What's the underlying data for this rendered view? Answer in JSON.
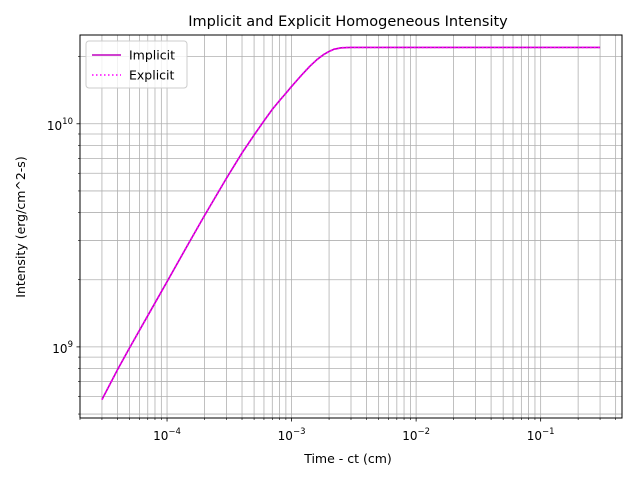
{
  "chart_data": {
    "type": "line",
    "title": "Implicit and Explicit Homogeneous Intensity",
    "xlabel": "Time - ct (cm)",
    "ylabel": "Intensity (erg/cm^2-s)",
    "xscale": "log",
    "yscale": "log",
    "xlim": [
      2e-05,
      0.45
    ],
    "ylim": [
      480000000,
      25000000000
    ],
    "grid": "both major and minor",
    "legend_position": "top-left",
    "x_ticks": [
      {
        "value": 0.0001,
        "mantissa": "10",
        "exponent": "−4"
      },
      {
        "value": 0.001,
        "mantissa": "10",
        "exponent": "−3"
      },
      {
        "value": 0.01,
        "mantissa": "10",
        "exponent": "−2"
      },
      {
        "value": 0.1,
        "mantissa": "10",
        "exponent": "−1"
      }
    ],
    "y_ticks": [
      {
        "value": 1000000000,
        "mantissa": "10",
        "exponent": "9"
      },
      {
        "value": 10000000000,
        "mantissa": "10",
        "exponent": "10"
      }
    ],
    "x": [
      3e-05,
      4e-05,
      5e-05,
      7e-05,
      0.0001,
      0.00015,
      0.0002,
      0.0003,
      0.0004,
      0.0005,
      0.0006,
      0.0007,
      0.0008,
      0.0009,
      0.001,
      0.0012,
      0.0014,
      0.0016,
      0.0018,
      0.002,
      0.0022,
      0.0025,
      0.003,
      0.004,
      0.005,
      0.01,
      0.02,
      0.05,
      0.1,
      0.2,
      0.3
    ],
    "series": [
      {
        "name": "Implicit",
        "color": "#bf00bf",
        "style": "solid",
        "values": [
          580000000,
          790000000,
          990000000,
          1380000000,
          1960000000,
          2930000000,
          3880000000,
          5700000000,
          7400000000,
          8900000000,
          10300000000,
          11600000000,
          12700000000,
          13700000000,
          14700000000,
          16500000000,
          18100000000,
          19400000000,
          20400000000,
          21100000000,
          21600000000,
          21900000000,
          22000000000,
          22000000000,
          22000000000,
          22000000000,
          22000000000,
          22000000000,
          22000000000,
          22000000000,
          22000000000
        ]
      },
      {
        "name": "Explicit",
        "color": "#ff00ff",
        "style": "dotted",
        "values": [
          580000000,
          790000000,
          990000000,
          1380000000,
          1960000000,
          2930000000,
          3880000000,
          5700000000,
          7400000000,
          8900000000,
          10300000000,
          11600000000,
          12700000000,
          13700000000,
          14700000000,
          16500000000,
          18100000000,
          19400000000,
          20400000000,
          21100000000,
          21600000000,
          21900000000,
          22000000000,
          22000000000,
          22000000000,
          22000000000,
          22000000000,
          22000000000,
          22000000000,
          22000000000,
          22000000000
        ]
      }
    ]
  }
}
